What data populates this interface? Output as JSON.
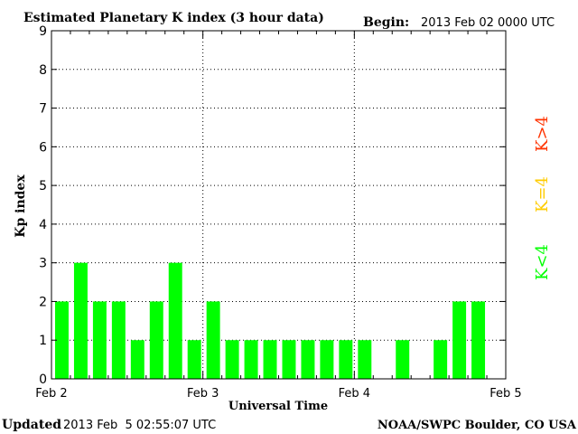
{
  "title": "Estimated Planetary K index (3 hour data)",
  "begin_label": "Begin:",
  "begin_value": "2013 Feb 02 0000 UTC",
  "footer": {
    "updated_label": "Updated",
    "updated_value": "2013 Feb  5 02:55:07 UTC",
    "source": "NOAA/SWPC Boulder, CO USA"
  },
  "legend": {
    "high": "K>4",
    "equal": "K=4",
    "low": "K<4"
  },
  "colors": {
    "low": "#00ff00",
    "equal": "#ffcc00",
    "high": "#ff3300",
    "axis": "#000000",
    "grid": "#000000"
  },
  "chart_data": {
    "type": "bar",
    "title": "Estimated Planetary K index (3 hour data)",
    "xlabel": "Universal Time",
    "ylabel": "Kp index",
    "ylim": [
      0,
      9
    ],
    "y_ticks": [
      "0",
      "1",
      "2",
      "3",
      "4",
      "5",
      "6",
      "7",
      "8",
      "9"
    ],
    "x_ticks": [
      "Feb 2",
      "Feb 3",
      "Feb 4",
      "Feb 5"
    ],
    "grid": true,
    "slot_hours": 3,
    "values": [
      2,
      3,
      2,
      2,
      1,
      2,
      3,
      1,
      2,
      1,
      1,
      1,
      1,
      1,
      1,
      1,
      1,
      null,
      1,
      null,
      1,
      2,
      2,
      null
    ]
  }
}
